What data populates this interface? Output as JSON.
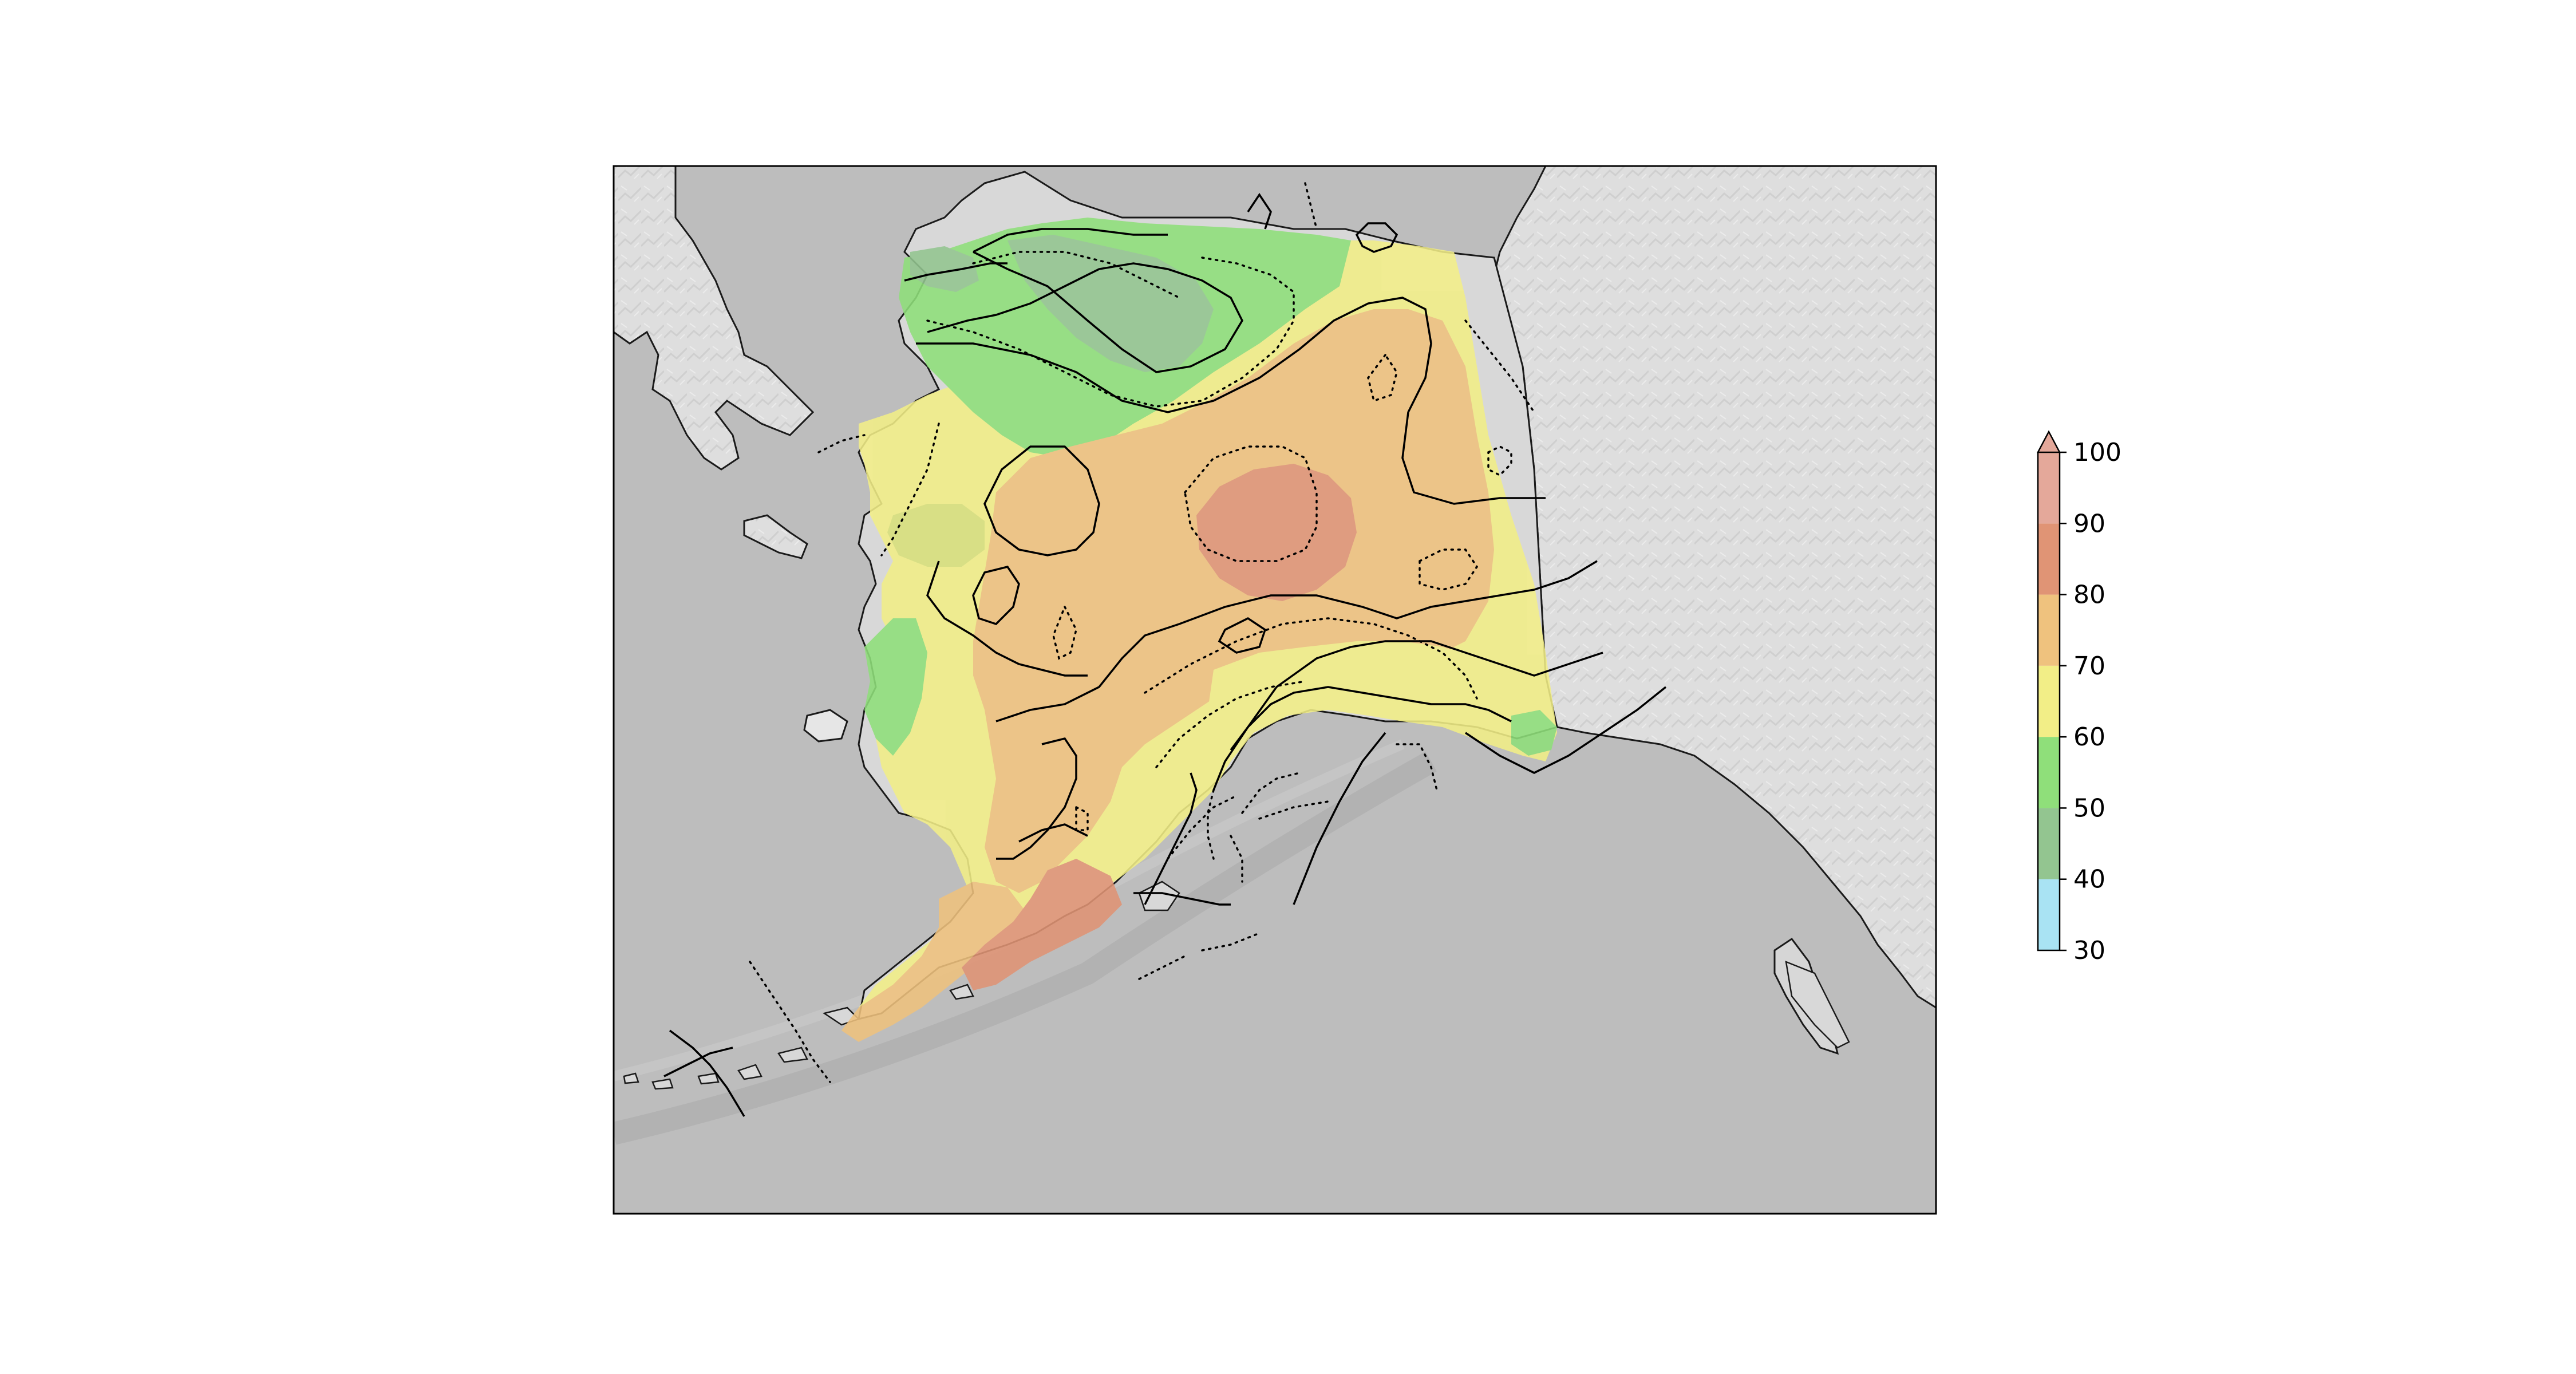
{
  "map": {
    "colors": {
      "ocean": "#bdbdbd",
      "land_relief": "#dcdcdc",
      "coast": "#1a1a1a",
      "contour": "#000000",
      "frame": "#000000"
    },
    "contour_styles": [
      "solid",
      "dotted"
    ]
  },
  "colorbar": {
    "ticks": [
      "30",
      "40",
      "50",
      "60",
      "70",
      "80",
      "90",
      "100"
    ],
    "extend": "max",
    "bins": [
      {
        "from": 30,
        "to": 40,
        "color": "#a9e3f3"
      },
      {
        "from": 40,
        "to": 50,
        "color": "#93c590"
      },
      {
        "from": 50,
        "to": 60,
        "color": "#8fdf7a"
      },
      {
        "from": 60,
        "to": 70,
        "color": "#f2ee87"
      },
      {
        "from": 70,
        "to": 80,
        "color": "#efc27e"
      },
      {
        "from": 80,
        "to": 90,
        "color": "#e09475"
      },
      {
        "from": 90,
        "to": 100,
        "color": "#e4a89a"
      }
    ]
  }
}
